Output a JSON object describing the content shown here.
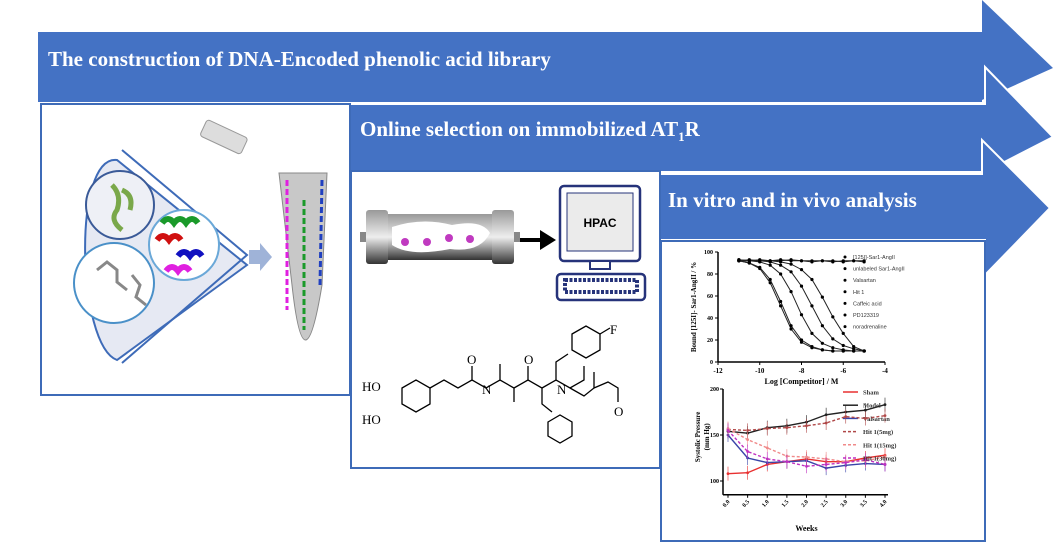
{
  "colors": {
    "arrow": "#4472c4",
    "panel_border": "#3e6bb8"
  },
  "steps": [
    {
      "title": "The construction of DNA-Encoded phenolic acid library"
    },
    {
      "title": "Online selection on immobilized  AT",
      "subscript": "1",
      "suffix": "R"
    },
    {
      "title": "In vitro and in vivo analysis"
    }
  ],
  "panel2": {
    "screen_label": "HPAC",
    "structure_labels": {
      "ho1": "HO",
      "ho2": "HO",
      "o": "O",
      "n": "N",
      "h": "H",
      "f": "F"
    }
  },
  "chart_data": [
    {
      "type": "line",
      "title": "",
      "xlabel": "Log [Competitor] / M",
      "ylabel": "Bound [125I]- Sar1-AngII / %",
      "xlim": [
        -12,
        -4
      ],
      "ylim": [
        0,
        100
      ],
      "xticks": [
        -12,
        -10,
        -8,
        -6,
        -4
      ],
      "yticks": [
        0,
        20,
        40,
        60,
        80,
        100
      ],
      "legend_position": "right",
      "x": [
        -11,
        -10.5,
        -10,
        -9.5,
        -9,
        -8.5,
        -8,
        -7.5,
        -7,
        -6.5,
        -6,
        -5.5,
        -5
      ],
      "series": [
        {
          "name": "[125I]-Sar1-AngII",
          "marker": "circle",
          "values": [
            92,
            90,
            85,
            72,
            51,
            30,
            18,
            13,
            11,
            10,
            10,
            10,
            10
          ]
        },
        {
          "name": "unlabeled Sar1-AngII",
          "marker": "square",
          "values": [
            92,
            90,
            86,
            75,
            55,
            33,
            20,
            14,
            11,
            10,
            10,
            10,
            10
          ]
        },
        {
          "name": "Valsartan",
          "marker": "triangle",
          "values": [
            92,
            92,
            91,
            88,
            80,
            64,
            43,
            26,
            17,
            13,
            11,
            10,
            10
          ]
        },
        {
          "name": "Hit 1",
          "marker": "triangle-down",
          "values": [
            92,
            92,
            92,
            91,
            88,
            82,
            69,
            51,
            33,
            21,
            15,
            12,
            10
          ]
        },
        {
          "name": "Caffeic acid",
          "marker": "diamond",
          "values": [
            93,
            92,
            92,
            92,
            91,
            89,
            84,
            75,
            59,
            41,
            26,
            14,
            10
          ]
        },
        {
          "name": "PD123319",
          "marker": "open-square",
          "values": [
            93,
            92,
            93,
            92,
            92,
            93,
            92,
            92,
            92,
            91,
            92,
            92,
            92
          ]
        },
        {
          "name": "noradrenaline",
          "marker": "triangle",
          "values": [
            92,
            93,
            92,
            92,
            93,
            92,
            92,
            91,
            92,
            92,
            91,
            92,
            91
          ]
        }
      ]
    },
    {
      "type": "line",
      "title": "",
      "xlabel": "Weeks",
      "ylabel": "Systolic Pressure (mm Hg)",
      "xlim": [
        0,
        4
      ],
      "ylim": [
        100,
        200
      ],
      "xticks": [
        "0.0",
        "0.5",
        "1.0",
        "1.5",
        "2.0",
        "2.5",
        "3.0",
        "3.5",
        "4.0"
      ],
      "yticks": [
        100,
        150,
        200
      ],
      "legend_position": "right",
      "x": [
        0,
        0.5,
        1,
        1.5,
        2,
        2.5,
        3,
        3.5,
        4
      ],
      "series": [
        {
          "name": "Sham",
          "color": "#e83030",
          "dash": false,
          "values": [
            108,
            109,
            118,
            121,
            124,
            121,
            121,
            125,
            128
          ]
        },
        {
          "name": "Model",
          "color": "#222222",
          "dash": false,
          "values": [
            154,
            152,
            158,
            160,
            164,
            172,
            175,
            177,
            183
          ]
        },
        {
          "name": "Valsartan",
          "color": "#3a44a8",
          "dash": false,
          "values": [
            150,
            125,
            120,
            121,
            122,
            114,
            117,
            119,
            118
          ]
        },
        {
          "name": "Hit 1(5mg)",
          "color": "#b04848",
          "dash": true,
          "values": [
            156,
            155,
            157,
            158,
            160,
            163,
            170,
            168,
            171
          ]
        },
        {
          "name": "Hit 1(15mg)",
          "color": "#f08a8a",
          "dash": true,
          "values": [
            157,
            145,
            136,
            127,
            126,
            124,
            121,
            122,
            126
          ]
        },
        {
          "name": "Hit 1(30mg)",
          "color": "#c030c0",
          "dash": true,
          "values": [
            155,
            132,
            124,
            121,
            116,
            118,
            120,
            123,
            118
          ]
        }
      ]
    }
  ]
}
